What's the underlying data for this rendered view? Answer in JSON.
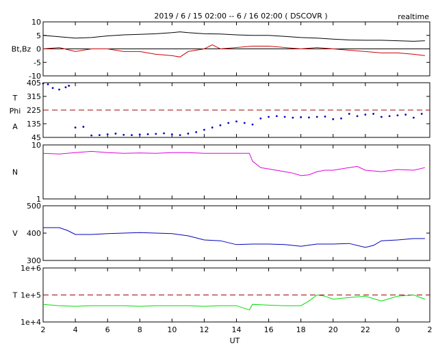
{
  "header": {
    "title": "2019 / 6 / 15   02:00 --  6 / 16  02:00 ( DSCOVR )",
    "badge": "realtime"
  },
  "xaxis": {
    "label": "UT",
    "ticks": [
      "2",
      "4",
      "6",
      "8",
      "10",
      "12",
      "14",
      "16",
      "18",
      "20",
      "22",
      "0",
      "2"
    ],
    "range_hours": [
      2,
      26
    ]
  },
  "colors": {
    "bt": "#000000",
    "bz": "#cc0000",
    "phi": "#0000bb",
    "density": "#dd00dd",
    "speed": "#0000bb",
    "temperature": "#00dd00",
    "reference": "#990000"
  },
  "chart_data": [
    {
      "type": "line",
      "panel": "magnetic-field",
      "ylabel": "Bt,Bz",
      "ylim": [
        -10,
        10
      ],
      "yticks": [
        "10",
        "5",
        "0",
        "-5",
        "-10"
      ],
      "zero_line": 0,
      "series": [
        {
          "x": [
            2,
            3,
            4,
            5,
            6,
            7,
            8,
            9,
            10,
            10.5,
            11,
            12,
            13,
            14,
            15,
            16,
            17,
            18,
            19,
            20,
            21,
            22,
            23,
            24,
            25,
            25.7
          ],
          "values": [
            5,
            4.5,
            4,
            4.2,
            4.8,
            5.2,
            5.4,
            5.6,
            6,
            6.3,
            6,
            5.6,
            5.5,
            5.2,
            5,
            5,
            4.6,
            4.2,
            4,
            3.6,
            3.3,
            3.2,
            3.2,
            3,
            2.8,
            3.0
          ]
        },
        {
          "x": [
            2,
            3,
            4,
            5,
            6,
            7,
            8,
            9,
            10,
            10.5,
            11,
            12,
            12.5,
            13,
            14,
            15,
            16,
            17,
            18,
            19,
            20,
            21,
            22,
            23,
            24,
            25,
            25.7
          ],
          "values": [
            0,
            0.5,
            -1,
            0,
            0,
            -1,
            -1,
            -2,
            -2.5,
            -3,
            -1,
            0,
            1.5,
            0,
            0.5,
            1,
            1,
            0.5,
            0,
            0.5,
            0,
            -0.5,
            -1,
            -1.5,
            -1.5,
            -2,
            -2.5
          ]
        }
      ]
    },
    {
      "type": "scatter",
      "panel": "phi-angle",
      "ylabel_lines": [
        "T",
        "Phi",
        "A"
      ],
      "ylim": [
        45,
        405
      ],
      "yticks": [
        "405",
        "315",
        "225",
        "135",
        "45"
      ],
      "reference_line": 225,
      "series": [
        {
          "x": [
            2,
            2.3,
            2.6,
            3.0,
            3.4,
            3.6,
            4.0,
            4.5,
            5.0,
            5.5,
            6,
            6.5,
            7,
            7.5,
            8,
            8.5,
            9,
            9.5,
            10,
            10.5,
            11,
            11.5,
            12,
            12.5,
            13,
            13.5,
            14,
            14.5,
            15,
            15.5,
            16,
            16.5,
            17,
            17.5,
            18,
            18.5,
            19,
            19.5,
            20,
            20.5,
            21,
            21.5,
            22,
            22.5,
            23,
            23.5,
            24,
            24.5,
            25,
            25.5
          ],
          "values": [
            400,
            395,
            370,
            360,
            375,
            385,
            110,
            115,
            58,
            60,
            65,
            70,
            62,
            60,
            64,
            66,
            68,
            72,
            65,
            60,
            70,
            80,
            95,
            110,
            125,
            140,
            150,
            140,
            130,
            170,
            180,
            185,
            180,
            175,
            178,
            176,
            180,
            182,
            165,
            170,
            200,
            185,
            195,
            200,
            180,
            185,
            190,
            195,
            175,
            200
          ]
        }
      ]
    },
    {
      "type": "line",
      "panel": "density",
      "ylabel": "N",
      "yscale": "log",
      "ylim": [
        1,
        10
      ],
      "yticks": [
        "10",
        "1"
      ],
      "series": [
        {
          "x": [
            2,
            3,
            4,
            5,
            6,
            7,
            8,
            9,
            10,
            11,
            12,
            13,
            14,
            14.8,
            15,
            15.5,
            16,
            17,
            17.5,
            18,
            18.5,
            19,
            19.5,
            20,
            21,
            21.5,
            22,
            23,
            24,
            25,
            25.7
          ],
          "values": [
            7,
            6.8,
            7.2,
            7.6,
            7.2,
            7.0,
            7.1,
            7.0,
            7.2,
            7.2,
            7.0,
            7.0,
            7.0,
            7.0,
            5.0,
            3.8,
            3.6,
            3.2,
            3.0,
            2.7,
            2.8,
            3.2,
            3.4,
            3.4,
            3.8,
            4.0,
            3.4,
            3.2,
            3.5,
            3.4,
            3.8
          ]
        }
      ]
    },
    {
      "type": "line",
      "panel": "speed",
      "ylabel": "V",
      "ylim": [
        300,
        500
      ],
      "yticks": [
        "500",
        "400",
        "300"
      ],
      "series": [
        {
          "x": [
            2,
            3,
            3.5,
            4,
            5,
            6,
            7,
            8,
            9,
            10,
            11,
            12,
            13,
            14,
            15,
            16,
            17,
            18,
            19,
            20,
            21,
            22,
            22.5,
            23,
            24,
            25,
            25.7
          ],
          "values": [
            420,
            420,
            410,
            395,
            395,
            398,
            400,
            402,
            400,
            398,
            390,
            375,
            372,
            358,
            360,
            360,
            358,
            352,
            360,
            360,
            362,
            348,
            355,
            372,
            375,
            380,
            380
          ]
        }
      ]
    },
    {
      "type": "line",
      "panel": "temperature",
      "ylabel": "T",
      "yscale": "log",
      "ylim": [
        10000,
        1000000
      ],
      "yticks": [
        "1e+6",
        "1e+5",
        "1e+4"
      ],
      "reference_line": 100000,
      "series": [
        {
          "x": [
            2,
            3,
            4,
            5,
            6,
            7,
            8,
            9,
            10,
            11,
            12,
            13,
            14,
            14.8,
            15,
            16,
            17,
            18,
            18.5,
            19,
            19.5,
            20,
            21,
            22,
            23,
            24,
            25,
            25.7
          ],
          "values": [
            45000,
            40000,
            38000,
            40000,
            40000,
            40000,
            38000,
            40000,
            40000,
            40000,
            38000,
            40000,
            40000,
            28000,
            45000,
            42000,
            40000,
            40000,
            60000,
            100000,
            90000,
            70000,
            80000,
            90000,
            60000,
            90000,
            100000,
            70000
          ]
        }
      ]
    }
  ]
}
